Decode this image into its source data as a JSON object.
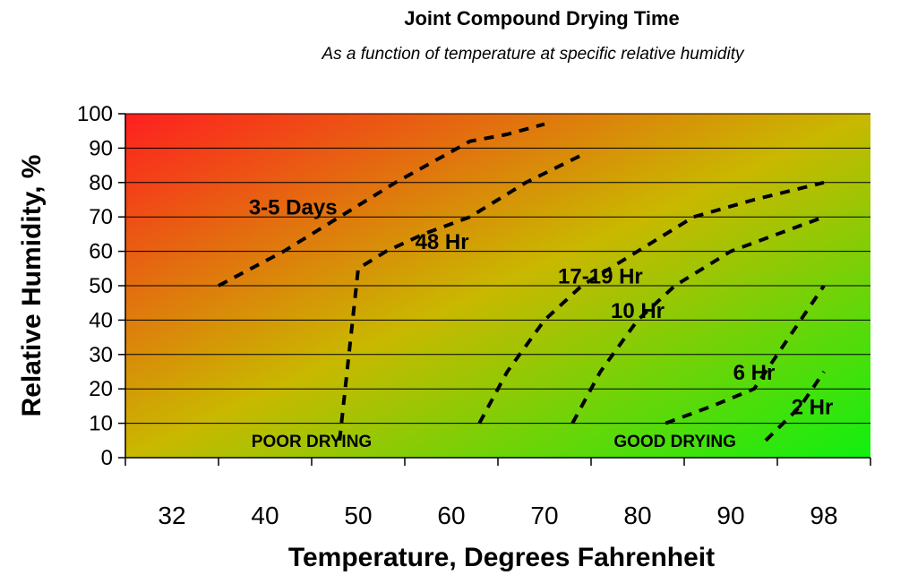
{
  "chart_data": {
    "type": "line",
    "title": "Joint Compound Drying Time",
    "subtitle": "As a function of temperature at specific relative humidity",
    "xlabel": "Temperature, Degrees Fahrenheit",
    "ylabel": "Relative Humidity, %",
    "categories": [
      "32",
      "40",
      "50",
      "60",
      "70",
      "80",
      "90",
      "98"
    ],
    "ylim": [
      0,
      100
    ],
    "yticks": [
      0,
      10,
      20,
      30,
      40,
      50,
      60,
      70,
      80,
      90,
      100
    ],
    "grid": "horizontal",
    "background": {
      "top_left": "#ff1f1f",
      "mid": "#c9b800",
      "bottom_right": "#10f010"
    },
    "series": [
      {
        "name": "3-5 Days",
        "x": [
          36,
          42,
          48,
          54,
          58,
          62,
          66,
          70
        ],
        "y": [
          50,
          60,
          70,
          80,
          86,
          92,
          94,
          97
        ],
        "label_at": [
          43,
          73
        ]
      },
      {
        "name": "48 Hr",
        "x": [
          48,
          49,
          50,
          53,
          57,
          62,
          68,
          74
        ],
        "y": [
          5,
          30,
          55,
          60,
          65,
          70,
          80,
          88
        ],
        "label_at": [
          59,
          63
        ]
      },
      {
        "name": "17-19 Hr",
        "x": [
          63,
          66,
          70,
          74,
          80,
          86,
          92,
          98
        ],
        "y": [
          10,
          25,
          40,
          50,
          60,
          70,
          75,
          80
        ],
        "label_at": [
          76,
          53
        ]
      },
      {
        "name": "10 Hr",
        "x": [
          73,
          76,
          80,
          84,
          90,
          94,
          98
        ],
        "y": [
          10,
          25,
          40,
          50,
          60,
          65,
          70
        ],
        "label_at": [
          80,
          43
        ]
      },
      {
        "name": "6 Hr",
        "x": [
          83,
          88,
          92,
          95,
          98
        ],
        "y": [
          10,
          15,
          20,
          35,
          50
        ],
        "label_at": [
          92,
          25
        ]
      },
      {
        "name": "2 Hr",
        "x": [
          93,
          96,
          98
        ],
        "y": [
          5,
          15,
          25
        ],
        "label_at": [
          97,
          15
        ]
      }
    ],
    "annotations": [
      {
        "text": "POOR DRYING",
        "x": 45,
        "y": 5
      },
      {
        "text": "GOOD DRYING",
        "x": 84,
        "y": 5
      }
    ]
  }
}
